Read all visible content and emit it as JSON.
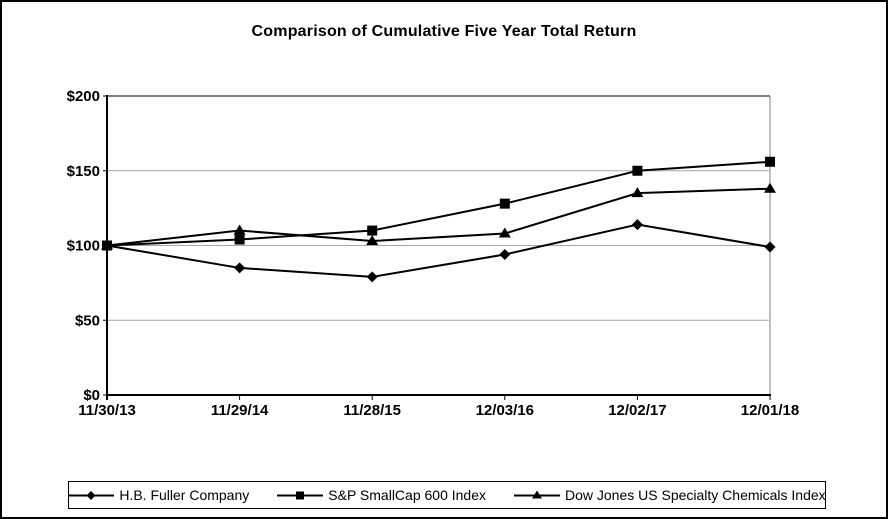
{
  "chart_data": {
    "type": "line",
    "title": "Comparison of Cumulative Five Year Total Return",
    "categories": [
      "11/30/13",
      "11/29/14",
      "11/28/15",
      "12/03/16",
      "12/02/17",
      "12/01/18"
    ],
    "series": [
      {
        "name": "H.B. Fuller Company",
        "marker": "diamond",
        "values": [
          100,
          85,
          79,
          94,
          114,
          99
        ]
      },
      {
        "name": "S&P SmallCap 600 Index",
        "marker": "square",
        "values": [
          100,
          104,
          110,
          128,
          150,
          156
        ]
      },
      {
        "name": "Dow Jones US Specialty Chemicals Index",
        "marker": "triangle",
        "values": [
          100,
          110,
          103,
          108,
          135,
          138
        ]
      }
    ],
    "ylim": [
      0,
      200
    ],
    "y_ticks": [
      {
        "value": 0,
        "label": "$0"
      },
      {
        "value": 50,
        "label": "$50"
      },
      {
        "value": 100,
        "label": "$100"
      },
      {
        "value": 150,
        "label": "$150"
      },
      {
        "value": 200,
        "label": "$200"
      }
    ],
    "grid": "horizontal",
    "legend_position": "bottom",
    "colors": {
      "series": "#000000",
      "grid": "#a6a6a6",
      "plot_border_right": "#808080",
      "plot_border_top": "#000000",
      "axis": "#000000",
      "background": "#ffffff"
    }
  }
}
